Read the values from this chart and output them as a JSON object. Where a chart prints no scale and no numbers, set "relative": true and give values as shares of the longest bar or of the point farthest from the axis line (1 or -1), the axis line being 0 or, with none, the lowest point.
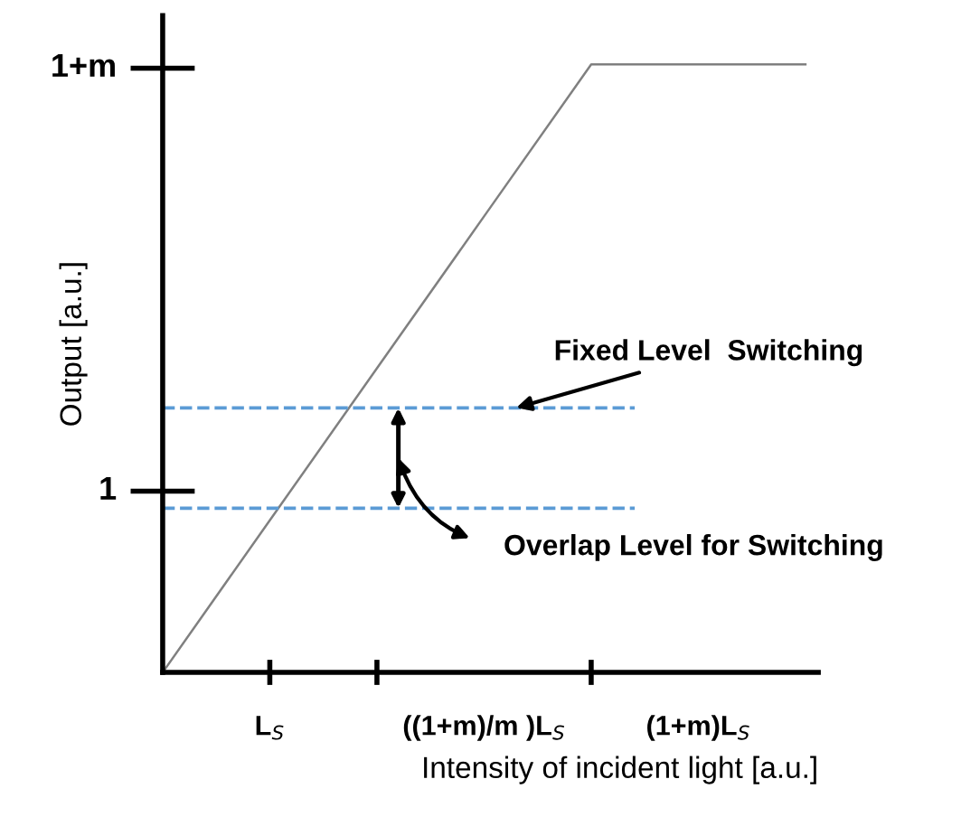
{
  "chart_data": {
    "type": "line",
    "relative": true,
    "xlabel": "Intensity of incident light [a.u.]",
    "ylabel": "Output [a.u.]",
    "categories": [
      null,
      "L$_{S}$",
      null,
      "((1+m)/m )L$_{S}$",
      null,
      "(1+m)L$_{S}$",
      null
    ],
    "series": [
      {
        "color": "#808080",
        "values": [
          0,
          0.25,
          0.5,
          0.75,
          1,
          1,
          1
        ]
      }
    ],
    "ref_lines": [
      {
        "axis": "y",
        "value": 0.435,
        "color": "#5b9bd5",
        "line_style": "dashed"
      },
      {
        "axis": "y",
        "value": 0.27,
        "color": "#5b9bd5",
        "line_style": "dashed"
      }
    ],
    "annotations": [
      "Fixed Level  Switching",
      "Overlap Level for Switching",
      "1",
      "1+m"
    ],
    "marker": "none",
    "line_style": "solid"
  }
}
